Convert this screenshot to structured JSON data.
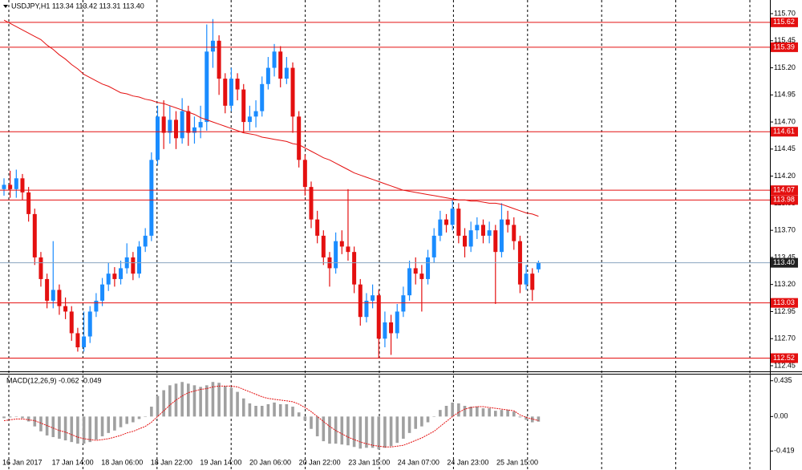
{
  "chart_data": [
    {
      "type": "candlestick",
      "title": "USDJPY,H1  113.34 113.42 113.31 113.40",
      "up_color": "#1a8cff",
      "down_color": "#e41010",
      "grid": true,
      "ylim": [
        112.398,
        115.826
      ],
      "yticks": [
        {
          "value": 115.7,
          "label": "115.70"
        },
        {
          "value": 115.45,
          "label": "115.45"
        },
        {
          "value": 115.2,
          "label": "115.20"
        },
        {
          "value": 114.95,
          "label": "114.95"
        },
        {
          "value": 114.7,
          "label": "114.70"
        },
        {
          "value": 114.45,
          "label": "114.45"
        },
        {
          "value": 114.2,
          "label": "114.20"
        },
        {
          "value": 113.95,
          "label": "113.95"
        },
        {
          "value": 113.7,
          "label": "113.70"
        },
        {
          "value": 113.45,
          "label": "113.45"
        },
        {
          "value": 113.2,
          "label": "113.20"
        },
        {
          "value": 112.95,
          "label": "112.95"
        },
        {
          "value": 112.7,
          "label": "112.70"
        },
        {
          "value": 112.45,
          "label": "112.45"
        }
      ],
      "x_labels": [
        "16 Jan 2017",
        "17 Jan 14:00",
        "18 Jan 06:00",
        "18 Jan 22:00",
        "19 Jan 14:00",
        "20 Jan 06:00",
        "20 Jan 22:00",
        "23 Jan 15:00",
        "24 Jan 07:00",
        "24 Jan 23:00",
        "25 Jan 15:00"
      ],
      "levels_color": "#e41010",
      "levels": [
        {
          "value": 115.62,
          "label": "115.62"
        },
        {
          "value": 115.39,
          "label": "115.39"
        },
        {
          "value": 114.61,
          "label": "114.61"
        },
        {
          "value": 114.07,
          "label": "114.07"
        },
        {
          "value": 113.98,
          "label": "113.98"
        },
        {
          "value": 113.03,
          "label": "113.03"
        },
        {
          "value": 112.52,
          "label": "112.52"
        }
      ],
      "current_price": {
        "value": 113.4,
        "label": "113.40",
        "color": "#8aa4bf"
      },
      "open": [
        114.08,
        114.12,
        114.08,
        114.18,
        114.05,
        113.85,
        113.45,
        113.25,
        113.05,
        113.15,
        113.0,
        112.95,
        112.75,
        112.62,
        112.72,
        112.95,
        113.05,
        113.2,
        113.3,
        113.25,
        113.35,
        113.45,
        113.3,
        113.55,
        113.65,
        114.35,
        114.75,
        114.6,
        114.72,
        114.55,
        114.8,
        114.6,
        114.65,
        114.7,
        115.35,
        115.45,
        115.1,
        114.85,
        115.1,
        115.0,
        114.7,
        114.75,
        114.8,
        115.05,
        115.2,
        115.35,
        115.1,
        115.2,
        114.75,
        114.35,
        114.1,
        113.8,
        113.65,
        113.45,
        113.35,
        113.6,
        113.55,
        113.5,
        113.2,
        112.9,
        113.05,
        113.1,
        112.7,
        112.85,
        112.75,
        112.95,
        113.1,
        113.35,
        113.3,
        113.25,
        113.45,
        113.65,
        113.8,
        113.75,
        113.9,
        113.65,
        113.55,
        113.7,
        113.75,
        113.65,
        113.7,
        113.5,
        113.8,
        113.75,
        113.6,
        113.2,
        113.3,
        113.34
      ],
      "high": [
        114.18,
        114.25,
        114.26,
        114.22,
        114.1,
        113.9,
        113.5,
        113.3,
        113.6,
        113.2,
        113.08,
        113.0,
        112.8,
        112.95,
        113.0,
        113.12,
        113.26,
        113.4,
        113.36,
        113.42,
        113.58,
        113.5,
        113.6,
        113.72,
        114.42,
        114.85,
        114.9,
        114.85,
        114.8,
        114.92,
        114.85,
        114.75,
        114.85,
        115.6,
        115.65,
        115.5,
        115.15,
        115.2,
        115.15,
        115.05,
        114.85,
        114.9,
        115.12,
        115.3,
        115.42,
        115.4,
        115.3,
        115.25,
        114.8,
        114.4,
        114.15,
        113.88,
        113.7,
        113.5,
        113.68,
        113.7,
        114.08,
        113.55,
        113.25,
        113.12,
        113.2,
        113.15,
        112.95,
        112.92,
        113.02,
        113.18,
        113.42,
        113.45,
        113.38,
        113.52,
        113.72,
        113.88,
        113.85,
        113.98,
        113.95,
        113.72,
        113.78,
        113.82,
        113.8,
        113.78,
        113.75,
        113.95,
        113.88,
        113.82,
        113.65,
        113.38,
        113.35,
        113.42
      ],
      "low": [
        114.02,
        114.0,
        114.0,
        113.98,
        113.78,
        113.38,
        113.18,
        112.98,
        112.98,
        112.92,
        112.88,
        112.68,
        112.58,
        112.58,
        112.66,
        112.9,
        113.0,
        113.14,
        113.18,
        113.2,
        113.3,
        113.24,
        113.26,
        113.5,
        113.6,
        114.3,
        114.45,
        114.5,
        114.45,
        114.5,
        114.48,
        114.5,
        114.55,
        114.62,
        115.2,
        114.95,
        114.78,
        114.8,
        114.9,
        114.6,
        114.62,
        114.65,
        114.75,
        115.0,
        115.12,
        115.02,
        115.05,
        114.6,
        114.28,
        114.02,
        113.72,
        113.58,
        113.38,
        113.18,
        113.3,
        113.48,
        113.42,
        113.12,
        112.82,
        112.85,
        112.98,
        112.52,
        112.62,
        112.55,
        112.7,
        112.9,
        113.05,
        113.2,
        112.95,
        113.2,
        113.4,
        113.6,
        113.68,
        113.7,
        113.58,
        113.45,
        113.5,
        113.62,
        113.58,
        113.58,
        113.02,
        113.45,
        113.68,
        113.52,
        113.12,
        113.15,
        113.05,
        113.31
      ],
      "close": [
        114.12,
        114.08,
        114.18,
        114.05,
        113.85,
        113.45,
        113.25,
        113.05,
        113.15,
        113.0,
        112.95,
        112.75,
        112.62,
        112.72,
        112.95,
        113.05,
        113.2,
        113.3,
        113.25,
        113.35,
        113.45,
        113.3,
        113.55,
        113.65,
        114.35,
        114.75,
        114.6,
        114.72,
        114.55,
        114.8,
        114.6,
        114.65,
        114.7,
        115.35,
        115.45,
        115.1,
        114.85,
        115.1,
        115.0,
        114.7,
        114.75,
        114.8,
        115.05,
        115.2,
        115.35,
        115.1,
        115.2,
        114.75,
        114.35,
        114.1,
        113.8,
        113.65,
        113.45,
        113.35,
        113.6,
        113.55,
        113.5,
        113.2,
        112.9,
        113.05,
        113.1,
        112.7,
        112.85,
        112.75,
        112.95,
        113.1,
        113.35,
        113.3,
        113.25,
        113.45,
        113.65,
        113.8,
        113.75,
        113.9,
        113.65,
        113.55,
        113.7,
        113.75,
        113.65,
        113.7,
        113.5,
        113.8,
        113.75,
        113.6,
        113.2,
        113.3,
        113.15,
        113.4
      ],
      "ma": {
        "color": "#e41010",
        "values": [
          115.64,
          115.61,
          115.58,
          115.55,
          115.52,
          115.49,
          115.46,
          115.41,
          115.37,
          115.32,
          115.28,
          115.23,
          115.19,
          115.14,
          115.11,
          115.08,
          115.05,
          115.03,
          115.0,
          114.97,
          114.96,
          114.94,
          114.93,
          114.91,
          114.9,
          114.88,
          114.87,
          114.85,
          114.83,
          114.81,
          114.79,
          114.77,
          114.74,
          114.72,
          114.7,
          114.68,
          114.66,
          114.64,
          114.62,
          114.6,
          114.59,
          114.58,
          114.56,
          114.55,
          114.54,
          114.53,
          114.52,
          114.5,
          114.49,
          114.46,
          114.43,
          114.4,
          114.37,
          114.35,
          114.32,
          114.29,
          114.26,
          114.23,
          114.21,
          114.19,
          114.17,
          114.15,
          114.13,
          114.11,
          114.09,
          114.07,
          114.06,
          114.05,
          114.04,
          114.03,
          114.02,
          114.01,
          114.0,
          113.99,
          113.98,
          113.98,
          113.97,
          113.97,
          113.96,
          113.95,
          113.95,
          113.94,
          113.92,
          113.9,
          113.88,
          113.86,
          113.85,
          113.83
        ]
      }
    },
    {
      "type": "macd",
      "title": "MACD(12,26,9) -0.062 -0.049",
      "ylim": [
        -0.65,
        0.52
      ],
      "yticks": [
        {
          "value": 0.435,
          "label": "0.435"
        },
        {
          "value": 0,
          "label": "0.00"
        },
        {
          "value": -0.419,
          "label": "-0.419"
        }
      ],
      "histogram": {
        "color": "#a0a0a0",
        "values": [
          -0.02,
          -0.01,
          0.0,
          -0.02,
          -0.06,
          -0.12,
          -0.18,
          -0.23,
          -0.25,
          -0.27,
          -0.29,
          -0.31,
          -0.33,
          -0.33,
          -0.31,
          -0.28,
          -0.24,
          -0.2,
          -0.17,
          -0.13,
          -0.09,
          -0.07,
          -0.03,
          0.0,
          0.12,
          0.25,
          0.32,
          0.38,
          0.4,
          0.42,
          0.4,
          0.38,
          0.36,
          0.38,
          0.42,
          0.41,
          0.37,
          0.35,
          0.3,
          0.22,
          0.16,
          0.13,
          0.13,
          0.15,
          0.17,
          0.15,
          0.15,
          0.12,
          0.05,
          -0.05,
          -0.15,
          -0.24,
          -0.3,
          -0.33,
          -0.33,
          -0.34,
          -0.35,
          -0.37,
          -0.39,
          -0.38,
          -0.38,
          -0.4,
          -0.38,
          -0.36,
          -0.32,
          -0.27,
          -0.2,
          -0.15,
          -0.12,
          -0.07,
          0.0,
          0.08,
          0.13,
          0.17,
          0.16,
          0.13,
          0.12,
          0.12,
          0.1,
          0.1,
          0.07,
          0.08,
          0.08,
          0.06,
          -0.01,
          -0.04,
          -0.07,
          -0.062
        ]
      },
      "signal": {
        "color": "#e41010",
        "values": [
          -0.05,
          -0.04,
          -0.03,
          -0.03,
          -0.04,
          -0.05,
          -0.08,
          -0.11,
          -0.14,
          -0.17,
          -0.19,
          -0.22,
          -0.25,
          -0.27,
          -0.28,
          -0.29,
          -0.28,
          -0.27,
          -0.25,
          -0.23,
          -0.2,
          -0.18,
          -0.15,
          -0.12,
          -0.07,
          0.0,
          0.07,
          0.14,
          0.2,
          0.25,
          0.29,
          0.31,
          0.33,
          0.34,
          0.36,
          0.37,
          0.37,
          0.37,
          0.36,
          0.33,
          0.3,
          0.27,
          0.24,
          0.22,
          0.21,
          0.2,
          0.19,
          0.18,
          0.15,
          0.11,
          0.06,
          0.0,
          -0.06,
          -0.12,
          -0.17,
          -0.21,
          -0.25,
          -0.28,
          -0.31,
          -0.33,
          -0.35,
          -0.36,
          -0.37,
          -0.37,
          -0.36,
          -0.35,
          -0.32,
          -0.29,
          -0.26,
          -0.22,
          -0.18,
          -0.12,
          -0.06,
          0.0,
          0.05,
          0.09,
          0.11,
          0.12,
          0.12,
          0.11,
          0.1,
          0.09,
          0.08,
          0.07,
          0.02,
          -0.01,
          -0.03,
          -0.049
        ]
      }
    }
  ]
}
